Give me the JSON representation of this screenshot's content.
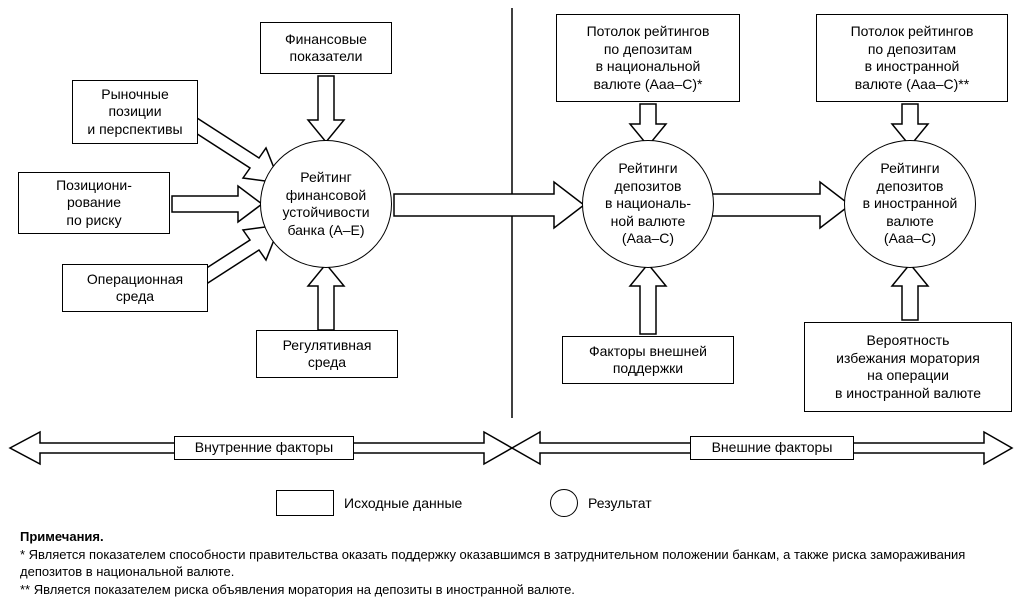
{
  "diagram": {
    "type": "flowchart",
    "background_color": "#ffffff",
    "stroke_color": "#000000",
    "text_color": "#000000",
    "font_family": "Arial",
    "font_size_pt": 11,
    "boxes": {
      "fin_indicators": "Финансовые\nпоказатели",
      "market_pos": "Рыночные\nпозиции\nи перспективы",
      "positioning": "Позициони-\nрование\nпо риску",
      "op_env": "Операционная\nсреда",
      "reg_env": "Регулятивная\nсреда",
      "ceiling_nat": "Потолок рейтингов\nпо депозитам\nв национальной\nвалюте (Aaa–C)*",
      "ceiling_for": "Потолок рейтингов\nпо депозитам\nв иностранной\nвалюте (Aaa–C)**",
      "ext_support": "Факторы внешней\nподдержки",
      "avoid_moratorium": "Вероятность\nизбежания моратория\nна операции\nв иностранной валюте"
    },
    "circles": {
      "bank_rating": "Рейтинг\nфинансовой\nустойчивости\nбанка (A–E)",
      "nat_deposits": "Рейтинги\nдепозитов\nв националь-\nной валюте\n(Aaa–C)",
      "for_deposits": "Рейтинги\nдепозитов\nв иностранной\nвалюте\n(Aaa–C)"
    },
    "section_labels": {
      "internal": "Внутренние факторы",
      "external": "Внешние факторы"
    },
    "legend": {
      "input": "Исходные данные",
      "output": "Результат"
    },
    "notes": {
      "title": "Примечания.",
      "n1": "*  Является показателем способности правительства оказать поддержку оказавшимся в затруднительном положении банкам, а также риска замораживания депозитов в национальной валюте.",
      "n2": "** Является показателем риска объявления моратория на депозиты в иностранной валюте."
    }
  }
}
